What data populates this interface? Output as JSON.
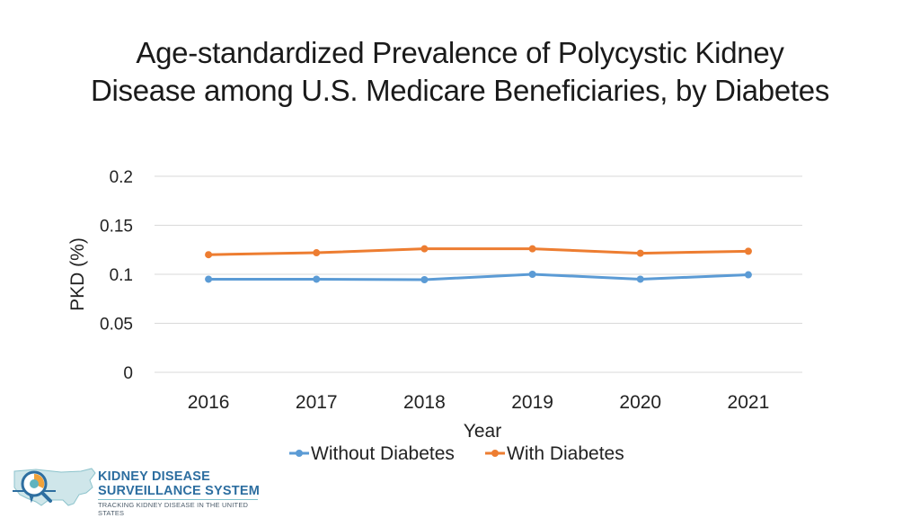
{
  "title": {
    "line1": "Age-standardized Prevalence of Polycystic Kidney",
    "line2": "Disease among U.S. Medicare Beneficiaries, by Diabetes"
  },
  "colors": {
    "series_without": "#5b9bd5",
    "series_with": "#ed7d31",
    "gridline": "#d9d9d9",
    "logo_blue": "#2d6ea0",
    "logo_teal": "#5fb3bf",
    "logo_orange": "#f0a23a"
  },
  "chart_data": {
    "type": "line",
    "title": "Age-standardized Prevalence of Polycystic Kidney Disease among U.S. Medicare Beneficiaries, by Diabetes",
    "xlabel": "Year",
    "ylabel": "PKD (%)",
    "categories": [
      "2016",
      "2017",
      "2018",
      "2019",
      "2020",
      "2021"
    ],
    "y_ticks": [
      "0",
      "0.05",
      "0.1",
      "0.15",
      "0.2"
    ],
    "ylim": [
      0,
      0.2
    ],
    "grid": true,
    "legend_position": "bottom",
    "series": [
      {
        "name": "Without Diabetes",
        "color": "#5b9bd5",
        "values": [
          0.095,
          0.095,
          0.0945,
          0.1,
          0.095,
          0.0995
        ]
      },
      {
        "name": "With Diabetes",
        "color": "#ed7d31",
        "values": [
          0.12,
          0.122,
          0.126,
          0.126,
          0.1215,
          0.1235
        ]
      }
    ]
  },
  "logo": {
    "line1": "KIDNEY DISEASE",
    "line2": "SURVEILLANCE SYSTEM",
    "tagline": "TRACKING KIDNEY DISEASE IN THE UNITED STATES"
  }
}
